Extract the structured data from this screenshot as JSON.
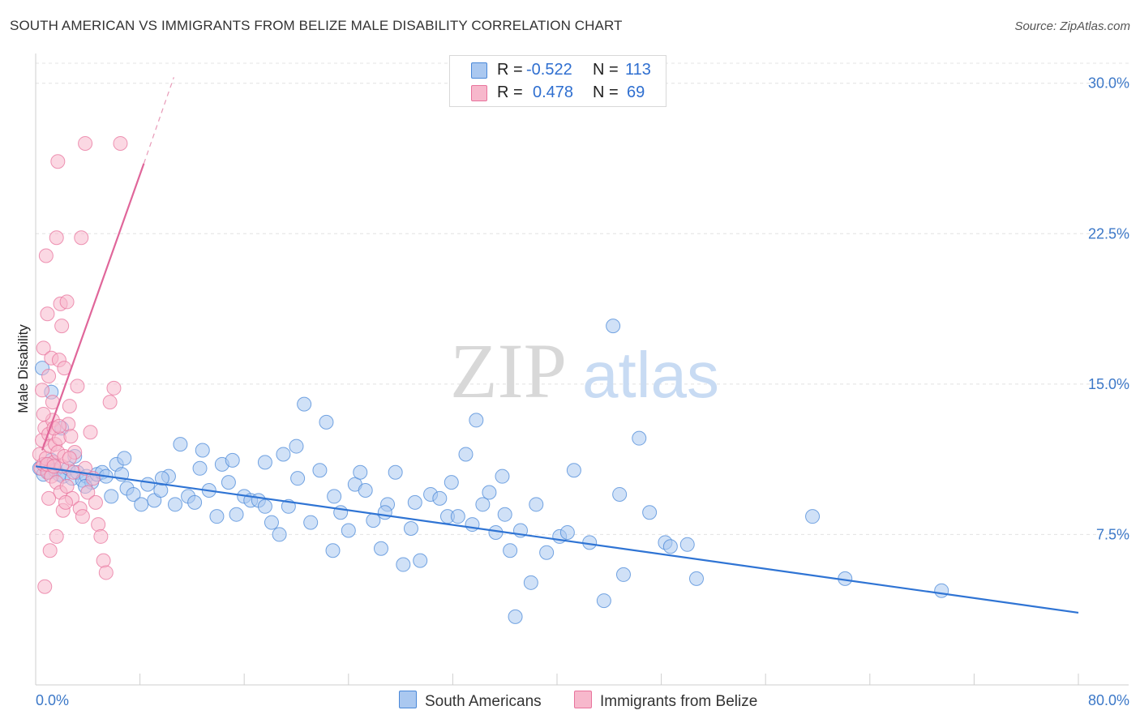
{
  "title": "SOUTH AMERICAN VS IMMIGRANTS FROM BELIZE MALE DISABILITY CORRELATION CHART",
  "source": "Source: ZipAtlas.com",
  "watermark": {
    "zip": "ZIP",
    "atlas": "atlas"
  },
  "legend": {
    "row1": {
      "r_label": "R =",
      "r_value": "-0.522",
      "n_label": "N =",
      "n_value": "113",
      "color": "#aac8f0"
    },
    "row2": {
      "r_label": "R =",
      "r_value": "0.478",
      "n_label": "N =",
      "n_value": "69",
      "color": "#f7b8cc"
    }
  },
  "bottom_legend": {
    "series1": "South Americans",
    "series2": "Immigrants from Belize"
  },
  "chart_data": {
    "type": "scatter",
    "title": "SOUTH AMERICAN VS IMMIGRANTS FROM BELIZE MALE DISABILITY CORRELATION CHART",
    "xlabel": "",
    "ylabel": "Male Disability",
    "xlim": [
      0,
      80
    ],
    "ylim": [
      0,
      31
    ],
    "x_tick_labels": [
      "0.0%",
      "80.0%"
    ],
    "y_ticks": [
      7.5,
      15.0,
      22.5,
      30.0
    ],
    "y_tick_labels": [
      "7.5%",
      "15.0%",
      "22.5%",
      "30.0%"
    ],
    "series": [
      {
        "name": "South Americans",
        "color": "#4a88d8",
        "fill": "#aac8f0",
        "trend": {
          "x0": 0,
          "y0": 10.9,
          "x1": 80,
          "y1": 3.6
        },
        "points": [
          [
            0.3,
            10.8
          ],
          [
            0.6,
            10.5
          ],
          [
            0.8,
            11.0
          ],
          [
            1.0,
            10.6
          ],
          [
            1.2,
            11.2
          ],
          [
            1.5,
            10.7
          ],
          [
            1.8,
            10.5
          ],
          [
            2.1,
            10.4
          ],
          [
            2.5,
            10.8
          ],
          [
            2.8,
            10.3
          ],
          [
            3.2,
            10.6
          ],
          [
            3.6,
            10.2
          ],
          [
            3.9,
            10.4
          ],
          [
            4.3,
            10.1
          ],
          [
            4.7,
            10.5
          ],
          [
            5.1,
            10.6
          ],
          [
            5.4,
            10.4
          ],
          [
            5.8,
            9.4
          ],
          [
            6.2,
            11.0
          ],
          [
            6.6,
            10.5
          ],
          [
            7.0,
            9.8
          ],
          [
            7.5,
            9.5
          ],
          [
            8.1,
            9.0
          ],
          [
            8.6,
            10.0
          ],
          [
            9.1,
            9.2
          ],
          [
            9.6,
            9.7
          ],
          [
            10.2,
            10.4
          ],
          [
            10.7,
            9.0
          ],
          [
            11.1,
            12.0
          ],
          [
            11.7,
            9.4
          ],
          [
            12.2,
            9.1
          ],
          [
            12.8,
            11.7
          ],
          [
            13.3,
            9.7
          ],
          [
            13.9,
            8.4
          ],
          [
            14.3,
            11.0
          ],
          [
            14.8,
            10.1
          ],
          [
            15.4,
            8.5
          ],
          [
            16.0,
            9.4
          ],
          [
            16.5,
            9.2
          ],
          [
            17.1,
            9.2
          ],
          [
            17.6,
            11.1
          ],
          [
            18.1,
            8.1
          ],
          [
            18.7,
            7.5
          ],
          [
            19.0,
            11.5
          ],
          [
            19.4,
            8.9
          ],
          [
            20.1,
            10.3
          ],
          [
            20.6,
            14.0
          ],
          [
            21.1,
            8.1
          ],
          [
            21.8,
            10.7
          ],
          [
            22.3,
            13.1
          ],
          [
            22.8,
            6.7
          ],
          [
            23.4,
            8.6
          ],
          [
            24.0,
            7.7
          ],
          [
            24.5,
            10.0
          ],
          [
            25.3,
            9.7
          ],
          [
            25.9,
            8.2
          ],
          [
            26.5,
            6.8
          ],
          [
            27.0,
            9.0
          ],
          [
            27.6,
            10.6
          ],
          [
            28.2,
            6.0
          ],
          [
            28.8,
            7.8
          ],
          [
            29.5,
            6.2
          ],
          [
            30.3,
            9.5
          ],
          [
            31.0,
            9.3
          ],
          [
            31.6,
            8.4
          ],
          [
            32.4,
            8.4
          ],
          [
            33.0,
            11.5
          ],
          [
            33.8,
            13.2
          ],
          [
            34.3,
            9.0
          ],
          [
            34.8,
            9.6
          ],
          [
            35.3,
            7.6
          ],
          [
            35.8,
            10.4
          ],
          [
            36.4,
            6.7
          ],
          [
            36.8,
            3.4
          ],
          [
            37.2,
            7.7
          ],
          [
            38.0,
            5.1
          ],
          [
            39.2,
            6.6
          ],
          [
            40.2,
            7.4
          ],
          [
            42.5,
            7.1
          ],
          [
            43.6,
            4.2
          ],
          [
            44.3,
            17.9
          ],
          [
            45.1,
            5.5
          ],
          [
            46.3,
            12.3
          ],
          [
            47.1,
            8.6
          ],
          [
            48.3,
            7.1
          ],
          [
            48.7,
            6.9
          ],
          [
            50.0,
            7.0
          ],
          [
            50.7,
            5.3
          ],
          [
            59.6,
            8.4
          ],
          [
            62.1,
            5.3
          ],
          [
            69.5,
            4.7
          ],
          [
            0.5,
            15.8
          ],
          [
            1.2,
            14.6
          ],
          [
            2.0,
            12.8
          ],
          [
            3.0,
            11.4
          ],
          [
            3.8,
            9.9
          ],
          [
            6.8,
            11.3
          ],
          [
            9.7,
            10.3
          ],
          [
            12.6,
            10.8
          ],
          [
            15.1,
            11.2
          ],
          [
            17.6,
            8.9
          ],
          [
            20.0,
            11.9
          ],
          [
            22.9,
            9.4
          ],
          [
            24.9,
            10.6
          ],
          [
            26.8,
            8.6
          ],
          [
            29.1,
            9.1
          ],
          [
            31.9,
            10.1
          ],
          [
            33.5,
            8.0
          ],
          [
            36.0,
            8.5
          ],
          [
            38.4,
            9.0
          ],
          [
            41.3,
            10.7
          ],
          [
            44.8,
            9.5
          ],
          [
            40.8,
            7.6
          ]
        ]
      },
      {
        "name": "Immigrants from Belize",
        "color": "#e8739c",
        "fill": "#f7b8cc",
        "trend": {
          "x0": 0.5,
          "y0": 11.7,
          "x1": 8.3,
          "y1": 26.0,
          "dash_to": {
            "x": 10.6,
            "y": 30.3
          }
        },
        "points": [
          [
            0.3,
            11.5
          ],
          [
            0.4,
            10.8
          ],
          [
            0.5,
            12.2
          ],
          [
            0.6,
            11.0
          ],
          [
            0.7,
            12.8
          ],
          [
            0.8,
            11.3
          ],
          [
            0.9,
            10.6
          ],
          [
            1.0,
            12.5
          ],
          [
            1.1,
            11.9
          ],
          [
            1.2,
            10.4
          ],
          [
            1.3,
            13.2
          ],
          [
            1.4,
            11.1
          ],
          [
            1.5,
            12.0
          ],
          [
            1.6,
            10.1
          ],
          [
            1.7,
            11.6
          ],
          [
            1.8,
            12.3
          ],
          [
            1.9,
            9.6
          ],
          [
            2.0,
            10.9
          ],
          [
            2.2,
            11.4
          ],
          [
            2.4,
            9.9
          ],
          [
            2.5,
            13.0
          ],
          [
            2.7,
            12.4
          ],
          [
            2.9,
            10.6
          ],
          [
            0.5,
            14.7
          ],
          [
            0.6,
            16.8
          ],
          [
            0.8,
            21.4
          ],
          [
            0.9,
            18.5
          ],
          [
            1.0,
            15.4
          ],
          [
            1.2,
            16.3
          ],
          [
            1.3,
            14.1
          ],
          [
            1.4,
            12.8
          ],
          [
            1.6,
            22.3
          ],
          [
            1.7,
            26.1
          ],
          [
            1.8,
            16.2
          ],
          [
            1.9,
            19.0
          ],
          [
            2.0,
            17.9
          ],
          [
            2.2,
            15.8
          ],
          [
            2.4,
            19.1
          ],
          [
            2.6,
            13.9
          ],
          [
            2.8,
            9.3
          ],
          [
            3.0,
            11.6
          ],
          [
            3.2,
            14.9
          ],
          [
            3.4,
            8.8
          ],
          [
            3.6,
            8.4
          ],
          [
            3.8,
            10.8
          ],
          [
            4.0,
            9.6
          ],
          [
            4.2,
            12.6
          ],
          [
            4.4,
            10.3
          ],
          [
            4.6,
            9.1
          ],
          [
            4.8,
            8.0
          ],
          [
            5.0,
            7.4
          ],
          [
            5.2,
            6.2
          ],
          [
            5.4,
            5.6
          ],
          [
            5.7,
            14.1
          ],
          [
            6.0,
            14.8
          ],
          [
            0.7,
            4.9
          ],
          [
            1.1,
            6.7
          ],
          [
            1.6,
            7.4
          ],
          [
            2.1,
            8.7
          ],
          [
            2.3,
            9.1
          ],
          [
            3.5,
            22.3
          ],
          [
            3.8,
            27.0
          ],
          [
            6.5,
            27.0
          ],
          [
            0.9,
            11.0
          ],
          [
            1.4,
            10.9
          ],
          [
            1.0,
            9.3
          ],
          [
            0.6,
            13.5
          ],
          [
            2.6,
            11.3
          ],
          [
            1.8,
            12.9
          ]
        ]
      }
    ]
  }
}
